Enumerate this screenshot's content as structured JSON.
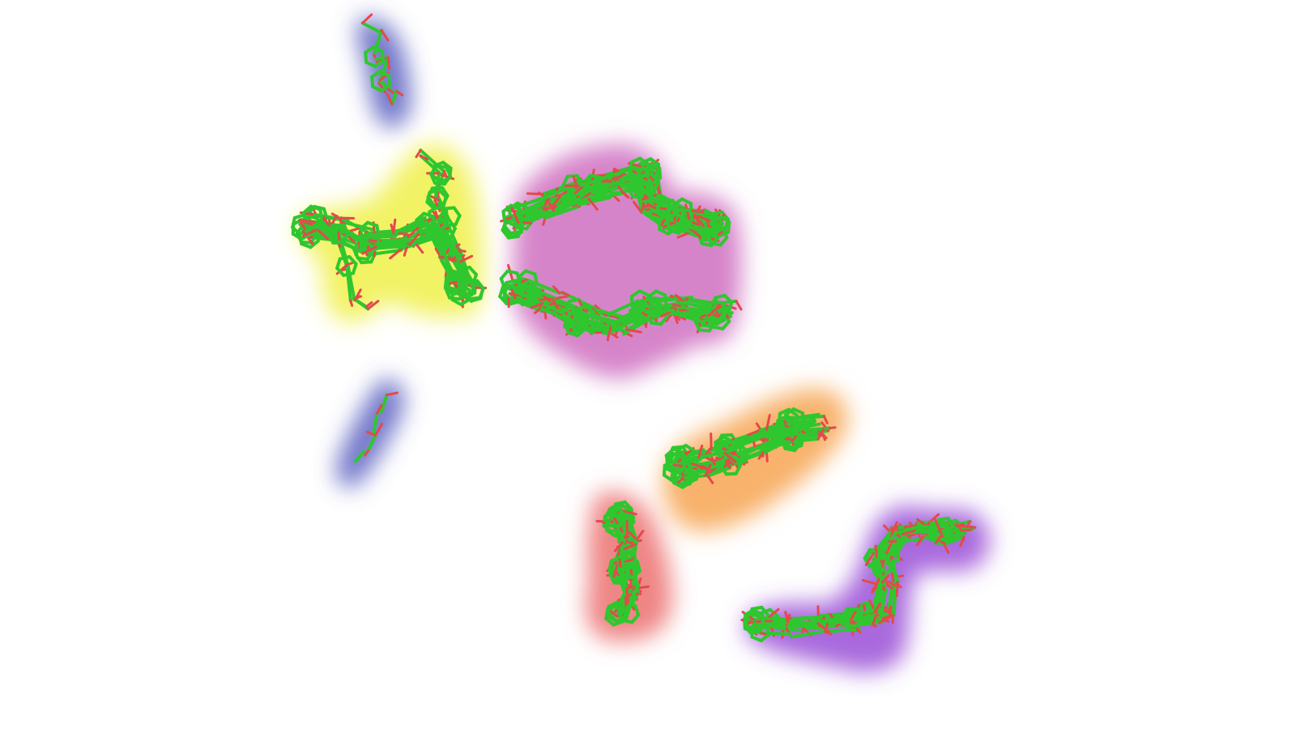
{
  "scene": {
    "background": "#ffffff",
    "carbon_color": "#2fc72f",
    "oxygen_color": "#e5484d",
    "clusters": [
      {
        "id": "blue-top",
        "color": "#5a5fc0"
      },
      {
        "id": "yellow",
        "color": "#f0f04a"
      },
      {
        "id": "pink",
        "color": "#cf6fc0"
      },
      {
        "id": "blue-bottom",
        "color": "#5a5fc0"
      },
      {
        "id": "orange",
        "color": "#f7a552"
      },
      {
        "id": "red",
        "color": "#ec7070"
      },
      {
        "id": "purple",
        "color": "#9a4fd6"
      }
    ]
  }
}
